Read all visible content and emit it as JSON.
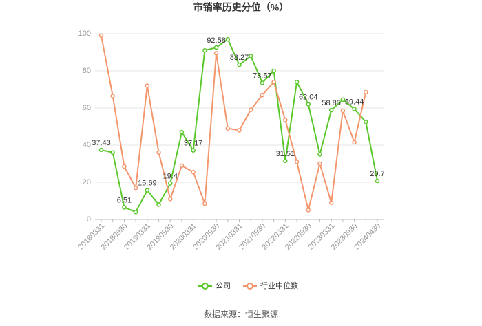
{
  "chart_data": {
    "type": "line",
    "title": "市销率历史分位（%）",
    "source": "数据来源：恒生聚源",
    "categories": [
      "20180331",
      null,
      "20180930",
      null,
      "20190331",
      null,
      "20190930",
      null,
      "20200331",
      null,
      "20200930",
      null,
      "20210331",
      null,
      "20210930",
      null,
      "20220331",
      null,
      "20220930",
      null,
      "20230331",
      null,
      "20230930",
      null,
      "20240430"
    ],
    "series": [
      {
        "name": "公司",
        "color": "#5ac72b",
        "values": [
          37.43,
          36,
          6.51,
          4,
          15.69,
          8,
          19.4,
          47,
          37.17,
          91,
          92.58,
          97,
          83.27,
          88,
          73.57,
          80,
          31.51,
          74,
          62.04,
          35,
          58.85,
          64.5,
          59.44,
          52.5,
          20.7
        ]
      },
      {
        "name": "行业中位数",
        "color": "#f4956b",
        "values": [
          99,
          66.5,
          28.5,
          17,
          72,
          36,
          11,
          29,
          25.5,
          8.5,
          89.5,
          49,
          48,
          59,
          67,
          74,
          53.5,
          31,
          5,
          30,
          9,
          58.5,
          41.5,
          68.5,
          null
        ]
      }
    ],
    "data_labels": {
      "series": 0,
      "every": 2
    },
    "ylim": [
      0,
      100
    ],
    "yticks": [
      0,
      20,
      40,
      60,
      80,
      100
    ],
    "grid": true,
    "legend": "bottom"
  }
}
